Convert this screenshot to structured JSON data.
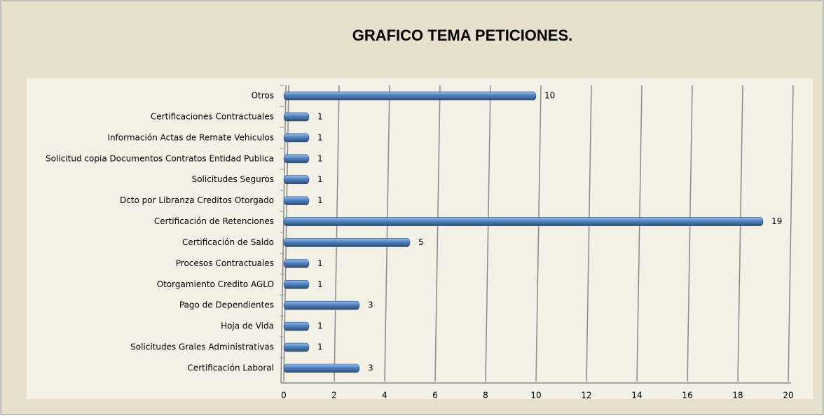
{
  "chart_data": {
    "type": "bar",
    "orientation": "horizontal",
    "title": "GRAFICO TEMA PETICIONES.",
    "categories": [
      "Otros",
      "Certificaciones Contractuales",
      "Información Actas de Remate  Vehiculos",
      "Solicitud copia Documentos Contratos Entidad Publica",
      "Solicitudes Seguros",
      "Dcto por Libranza Creditos Otorgado",
      "Certificación de Retenciones",
      "Certificación de Saldo",
      "Procesos Contractuales",
      "Otorgamiento Credito  AGLO",
      "Pago de Dependientes",
      "Hoja de Vida",
      "Solicitudes Grales Administrativas",
      "Certificación Laboral"
    ],
    "values": [
      10,
      1,
      1,
      1,
      1,
      1,
      19,
      5,
      1,
      1,
      3,
      1,
      1,
      3
    ],
    "color": "#4f81bd",
    "xlim": [
      0,
      20
    ],
    "xticks": [
      0,
      2,
      4,
      6,
      8,
      10,
      12,
      14,
      16,
      18,
      20
    ],
    "grid": true
  }
}
